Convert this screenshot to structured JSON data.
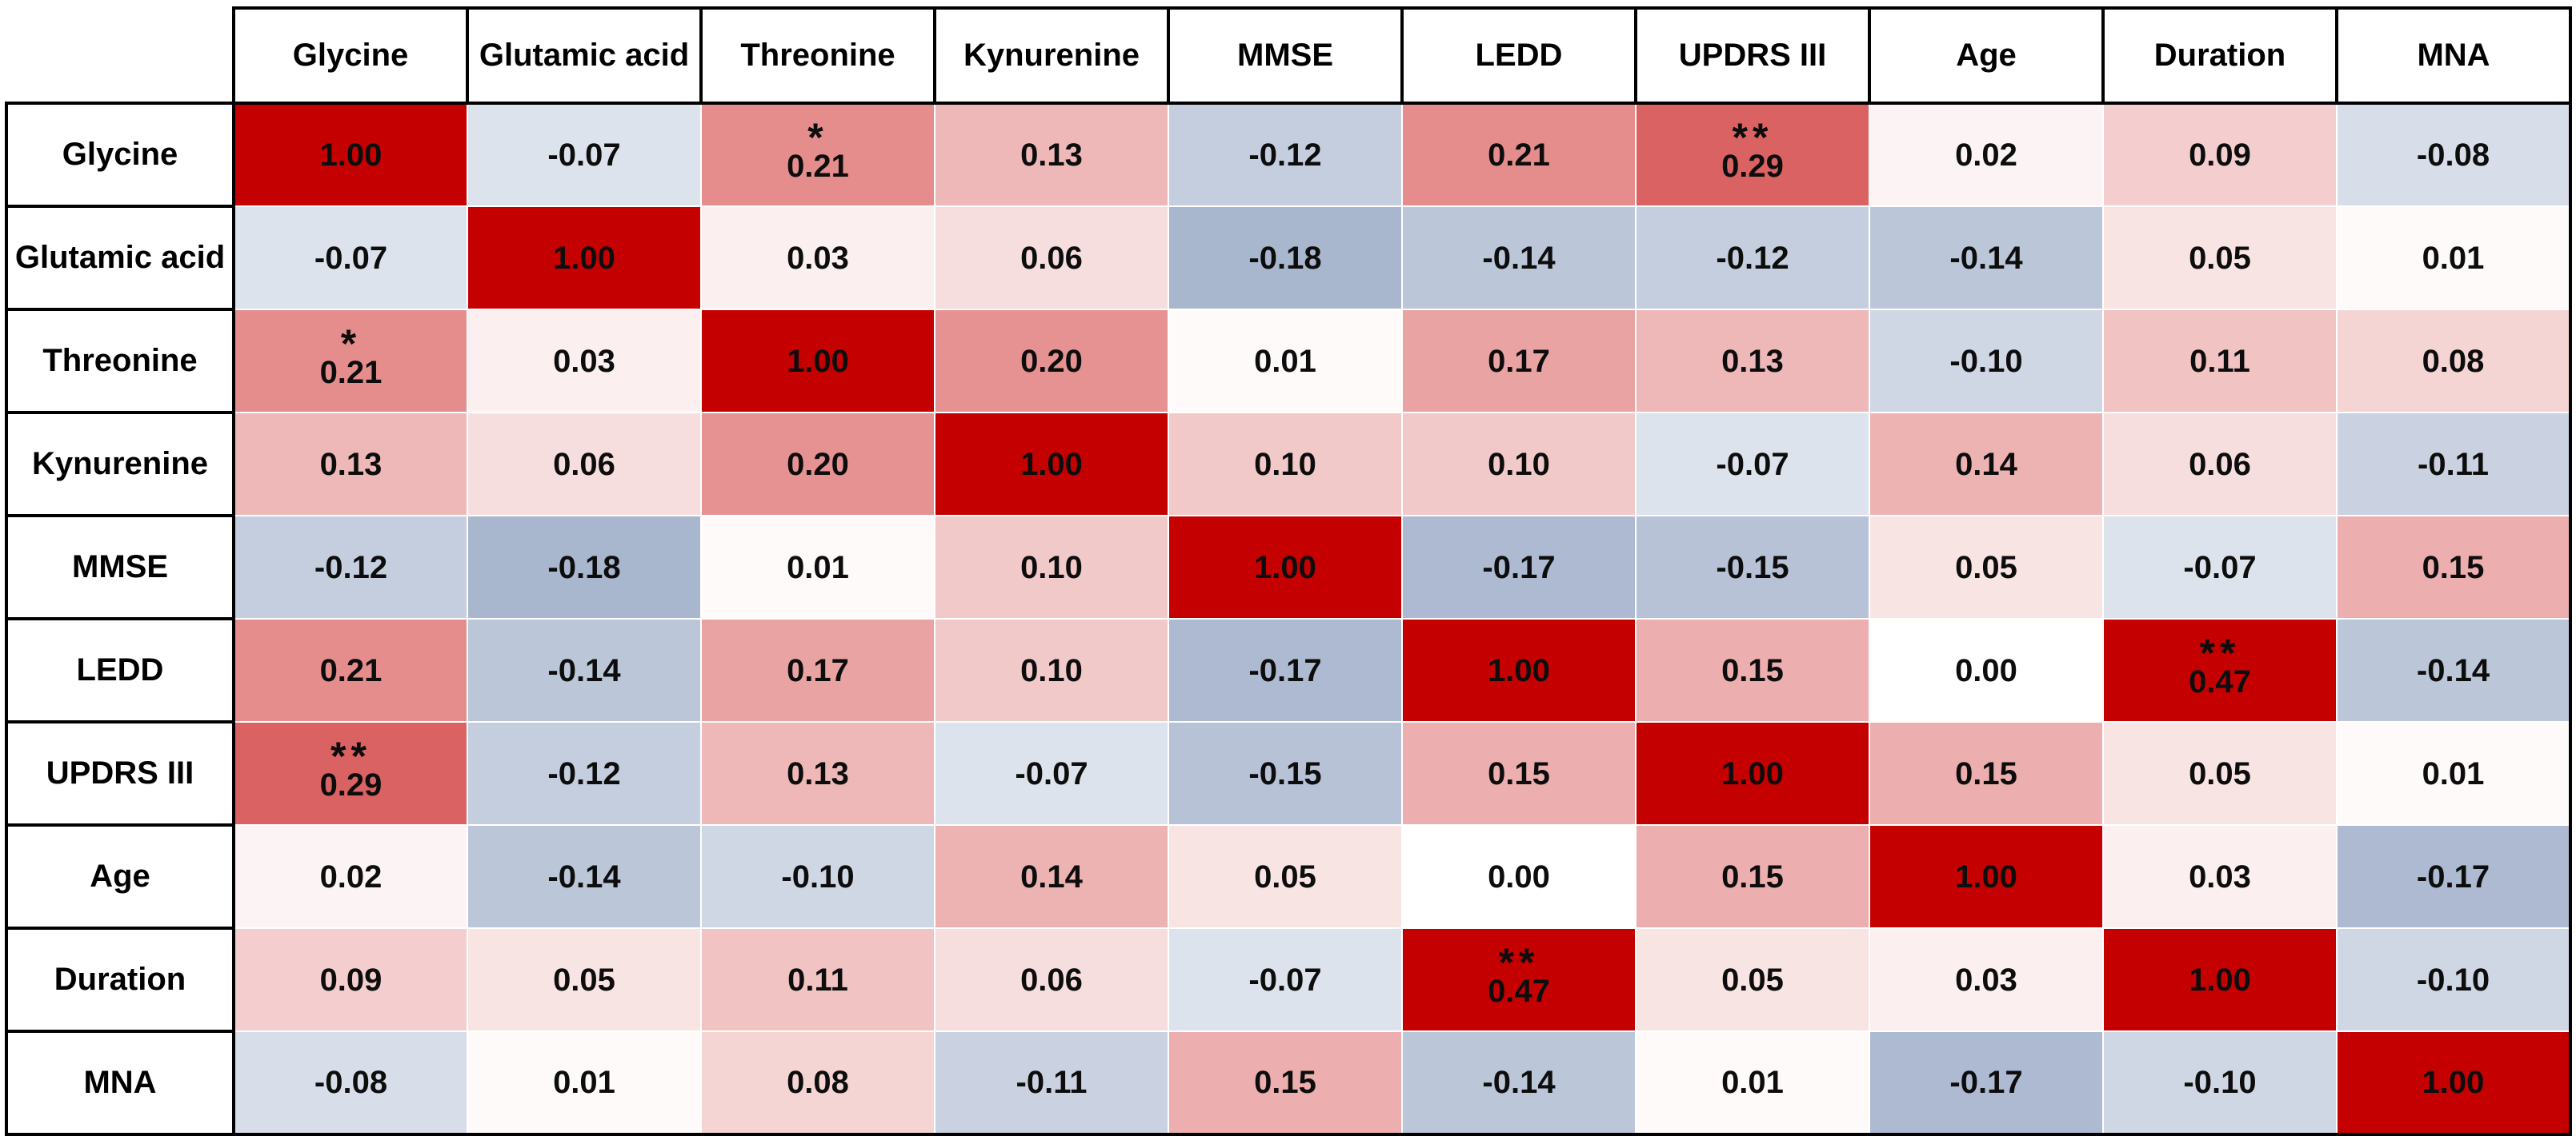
{
  "figure": {
    "kind": "correlation-matrix-heatmap",
    "corner_label": ""
  },
  "chart_data": {
    "type": "heatmap",
    "title": "",
    "col_labels": [
      "Glycine",
      "Glutamic acid",
      "Threonine",
      "Kynurenine",
      "MMSE",
      "LEDD",
      "UPDRS III",
      "Age",
      "Duration",
      "MNA"
    ],
    "row_labels": [
      "Glycine",
      "Glutamic acid",
      "Threonine",
      "Kynurenine",
      "MMSE",
      "LEDD",
      "UPDRS III",
      "Age",
      "Duration",
      "MNA"
    ],
    "matrix": [
      [
        1.0,
        -0.07,
        0.21,
        0.13,
        -0.12,
        0.21,
        0.29,
        0.02,
        0.09,
        -0.08
      ],
      [
        -0.07,
        1.0,
        0.03,
        0.06,
        -0.18,
        -0.14,
        -0.12,
        -0.14,
        0.05,
        0.01
      ],
      [
        0.21,
        0.03,
        1.0,
        0.2,
        0.01,
        0.17,
        0.13,
        -0.1,
        0.11,
        0.08
      ],
      [
        0.13,
        0.06,
        0.2,
        1.0,
        0.1,
        0.1,
        -0.07,
        0.14,
        0.06,
        -0.11
      ],
      [
        -0.12,
        -0.18,
        0.01,
        0.1,
        1.0,
        -0.17,
        -0.15,
        0.05,
        -0.07,
        0.15
      ],
      [
        0.21,
        -0.14,
        0.17,
        0.1,
        -0.17,
        1.0,
        0.15,
        0.0,
        0.47,
        -0.14
      ],
      [
        0.29,
        -0.12,
        0.13,
        -0.07,
        -0.15,
        0.15,
        1.0,
        0.15,
        0.05,
        0.01
      ],
      [
        0.02,
        -0.14,
        -0.1,
        0.14,
        0.05,
        0.0,
        0.15,
        1.0,
        0.03,
        -0.17
      ],
      [
        0.09,
        0.05,
        0.11,
        0.06,
        -0.07,
        0.47,
        0.05,
        0.03,
        1.0,
        -0.1
      ],
      [
        -0.08,
        0.01,
        0.08,
        -0.11,
        0.15,
        -0.14,
        0.01,
        -0.17,
        -0.1,
        1.0
      ]
    ],
    "significance": [
      [
        "",
        "",
        "*",
        "",
        "",
        "",
        "**",
        "",
        "",
        ""
      ],
      [
        "",
        "",
        "",
        "",
        "",
        "",
        "",
        "",
        "",
        ""
      ],
      [
        "*",
        "",
        "",
        "",
        "",
        "",
        "",
        "",
        "",
        ""
      ],
      [
        "",
        "",
        "",
        "",
        "",
        "",
        "",
        "",
        "",
        ""
      ],
      [
        "",
        "",
        "",
        "",
        "",
        "",
        "",
        "",
        "",
        ""
      ],
      [
        "",
        "",
        "",
        "",
        "",
        "",
        "",
        "",
        "**",
        ""
      ],
      [
        "**",
        "",
        "",
        "",
        "",
        "",
        "",
        "",
        "",
        ""
      ],
      [
        "",
        "",
        "",
        "",
        "",
        "",
        "",
        "",
        "",
        ""
      ],
      [
        "",
        "",
        "",
        "",
        "",
        "**",
        "",
        "",
        "",
        ""
      ],
      [
        "",
        "",
        "",
        "",
        "",
        "",
        "",
        "",
        "",
        ""
      ]
    ],
    "value_format": "0.00",
    "layout": {
      "grid": "white thin separators between colored cells",
      "frame": "black borders around header row and label column"
    },
    "colormap": {
      "zero_color": "#ffffff",
      "positive_max_color": "#c40000",
      "negative_max_color": "#1c407f",
      "saturation_abs_value": 0.47
    }
  }
}
